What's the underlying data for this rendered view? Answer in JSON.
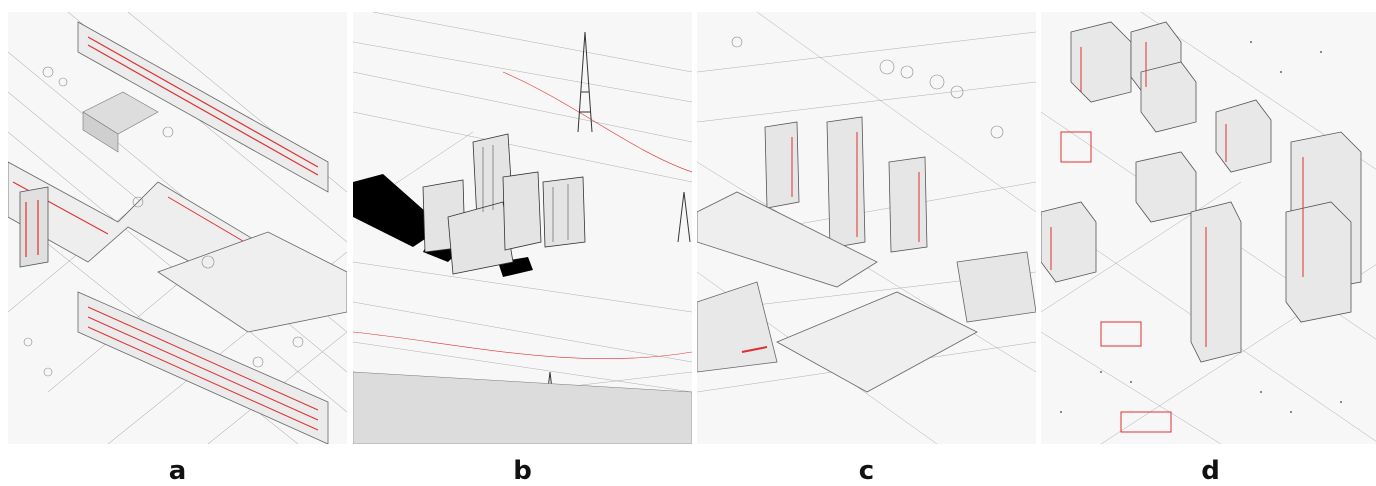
{
  "panels": [
    {
      "label": "a"
    },
    {
      "label": "b"
    },
    {
      "label": "c"
    },
    {
      "label": "d"
    }
  ],
  "colors": {
    "line": "#8a8a8a",
    "accent": "#e03030",
    "solid": "#000000",
    "background": "#f7f7f7"
  }
}
